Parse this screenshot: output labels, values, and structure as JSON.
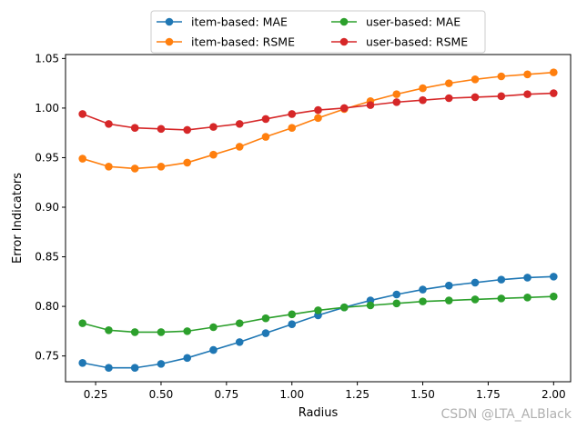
{
  "chart_data": {
    "type": "line",
    "title": "",
    "xlabel": "Radius",
    "ylabel": "Error Indicators",
    "xlim": [
      0.135,
      2.065
    ],
    "ylim": [
      0.724,
      1.054
    ],
    "x": [
      0.2,
      0.3,
      0.4,
      0.5,
      0.6,
      0.7,
      0.8,
      0.9,
      1.0,
      1.1,
      1.2,
      1.3,
      1.4,
      1.5,
      1.6,
      1.7,
      1.8,
      1.9,
      2.0
    ],
    "xticks": [
      0.25,
      0.5,
      0.75,
      1.0,
      1.25,
      1.5,
      1.75,
      2.0
    ],
    "xtick_labels": [
      "0.25",
      "0.50",
      "0.75",
      "1.00",
      "1.25",
      "1.50",
      "1.75",
      "2.00"
    ],
    "yticks": [
      0.75,
      0.8,
      0.85,
      0.9,
      0.95,
      1.0,
      1.05
    ],
    "ytick_labels": [
      "0.75",
      "0.80",
      "0.85",
      "0.90",
      "0.95",
      "1.00",
      "1.05"
    ],
    "legend_position": "top-center",
    "series": [
      {
        "name": "item-based: MAE",
        "color": "#1f77b4",
        "values": [
          0.743,
          0.738,
          0.738,
          0.742,
          0.748,
          0.756,
          0.764,
          0.773,
          0.782,
          0.791,
          0.799,
          0.806,
          0.812,
          0.817,
          0.821,
          0.824,
          0.827,
          0.829,
          0.83
        ]
      },
      {
        "name": "item-based: RSME",
        "color": "#ff7f0e",
        "values": [
          0.949,
          0.941,
          0.939,
          0.941,
          0.945,
          0.953,
          0.961,
          0.971,
          0.98,
          0.99,
          0.999,
          1.007,
          1.014,
          1.02,
          1.025,
          1.029,
          1.032,
          1.034,
          1.036
        ]
      },
      {
        "name": "user-based: MAE",
        "color": "#2ca02c",
        "values": [
          0.783,
          0.776,
          0.774,
          0.774,
          0.775,
          0.779,
          0.783,
          0.788,
          0.792,
          0.796,
          0.799,
          0.801,
          0.803,
          0.805,
          0.806,
          0.807,
          0.808,
          0.809,
          0.81
        ]
      },
      {
        "name": "user-based: RSME",
        "color": "#d62728",
        "values": [
          0.994,
          0.984,
          0.98,
          0.979,
          0.978,
          0.981,
          0.984,
          0.989,
          0.994,
          0.998,
          1.0,
          1.003,
          1.006,
          1.008,
          1.01,
          1.011,
          1.012,
          1.014,
          1.015
        ]
      }
    ]
  },
  "watermark": "CSDN @LTA_ALBlack"
}
